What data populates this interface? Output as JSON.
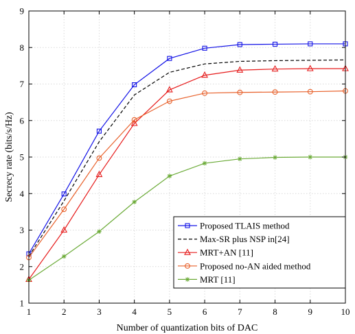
{
  "chart_data": {
    "type": "line",
    "title": "",
    "xlabel": "Number of quantization bits of DAC",
    "ylabel": "Secrecy rate (bits/s/Hz)",
    "xlim": [
      1,
      10
    ],
    "ylim": [
      1,
      9
    ],
    "x_ticks": [
      1,
      2,
      3,
      4,
      5,
      6,
      7,
      8,
      9,
      10
    ],
    "y_ticks": [
      1,
      2,
      3,
      4,
      5,
      6,
      7,
      8,
      9
    ],
    "grid": true,
    "legend_position": "bottom-right",
    "x": [
      1,
      2,
      3,
      4,
      5,
      6,
      7,
      8,
      9,
      10
    ],
    "series": [
      {
        "name": "Proposed TLAIS method",
        "values": [
          2.35,
          3.99,
          5.71,
          6.98,
          7.7,
          7.98,
          8.08,
          8.09,
          8.1,
          8.1
        ],
        "color": "#1010e6",
        "marker": "square",
        "dash": "solid"
      },
      {
        "name": "Max-SR plus NSP in[24]",
        "values": [
          2.28,
          3.8,
          5.42,
          6.7,
          7.32,
          7.55,
          7.62,
          7.64,
          7.65,
          7.66
        ],
        "color": "#000000",
        "marker": "none",
        "dash": "dashed"
      },
      {
        "name": "MRT+AN [11]",
        "values": [
          1.65,
          3.0,
          4.52,
          5.92,
          6.84,
          7.24,
          7.38,
          7.41,
          7.42,
          7.42
        ],
        "color": "#e61a1a",
        "marker": "triangle",
        "dash": "solid"
      },
      {
        "name": "Proposed no-AN aided method",
        "values": [
          2.25,
          3.57,
          4.97,
          6.02,
          6.53,
          6.75,
          6.77,
          6.78,
          6.79,
          6.81
        ],
        "color": "#e8602a",
        "marker": "circle",
        "dash": "solid"
      },
      {
        "name": "MRT [11]",
        "values": [
          1.63,
          2.28,
          2.96,
          3.77,
          4.48,
          4.83,
          4.95,
          4.99,
          5.0,
          5.0
        ],
        "color": "#6aaa36",
        "marker": "asterisk",
        "dash": "solid"
      }
    ]
  }
}
